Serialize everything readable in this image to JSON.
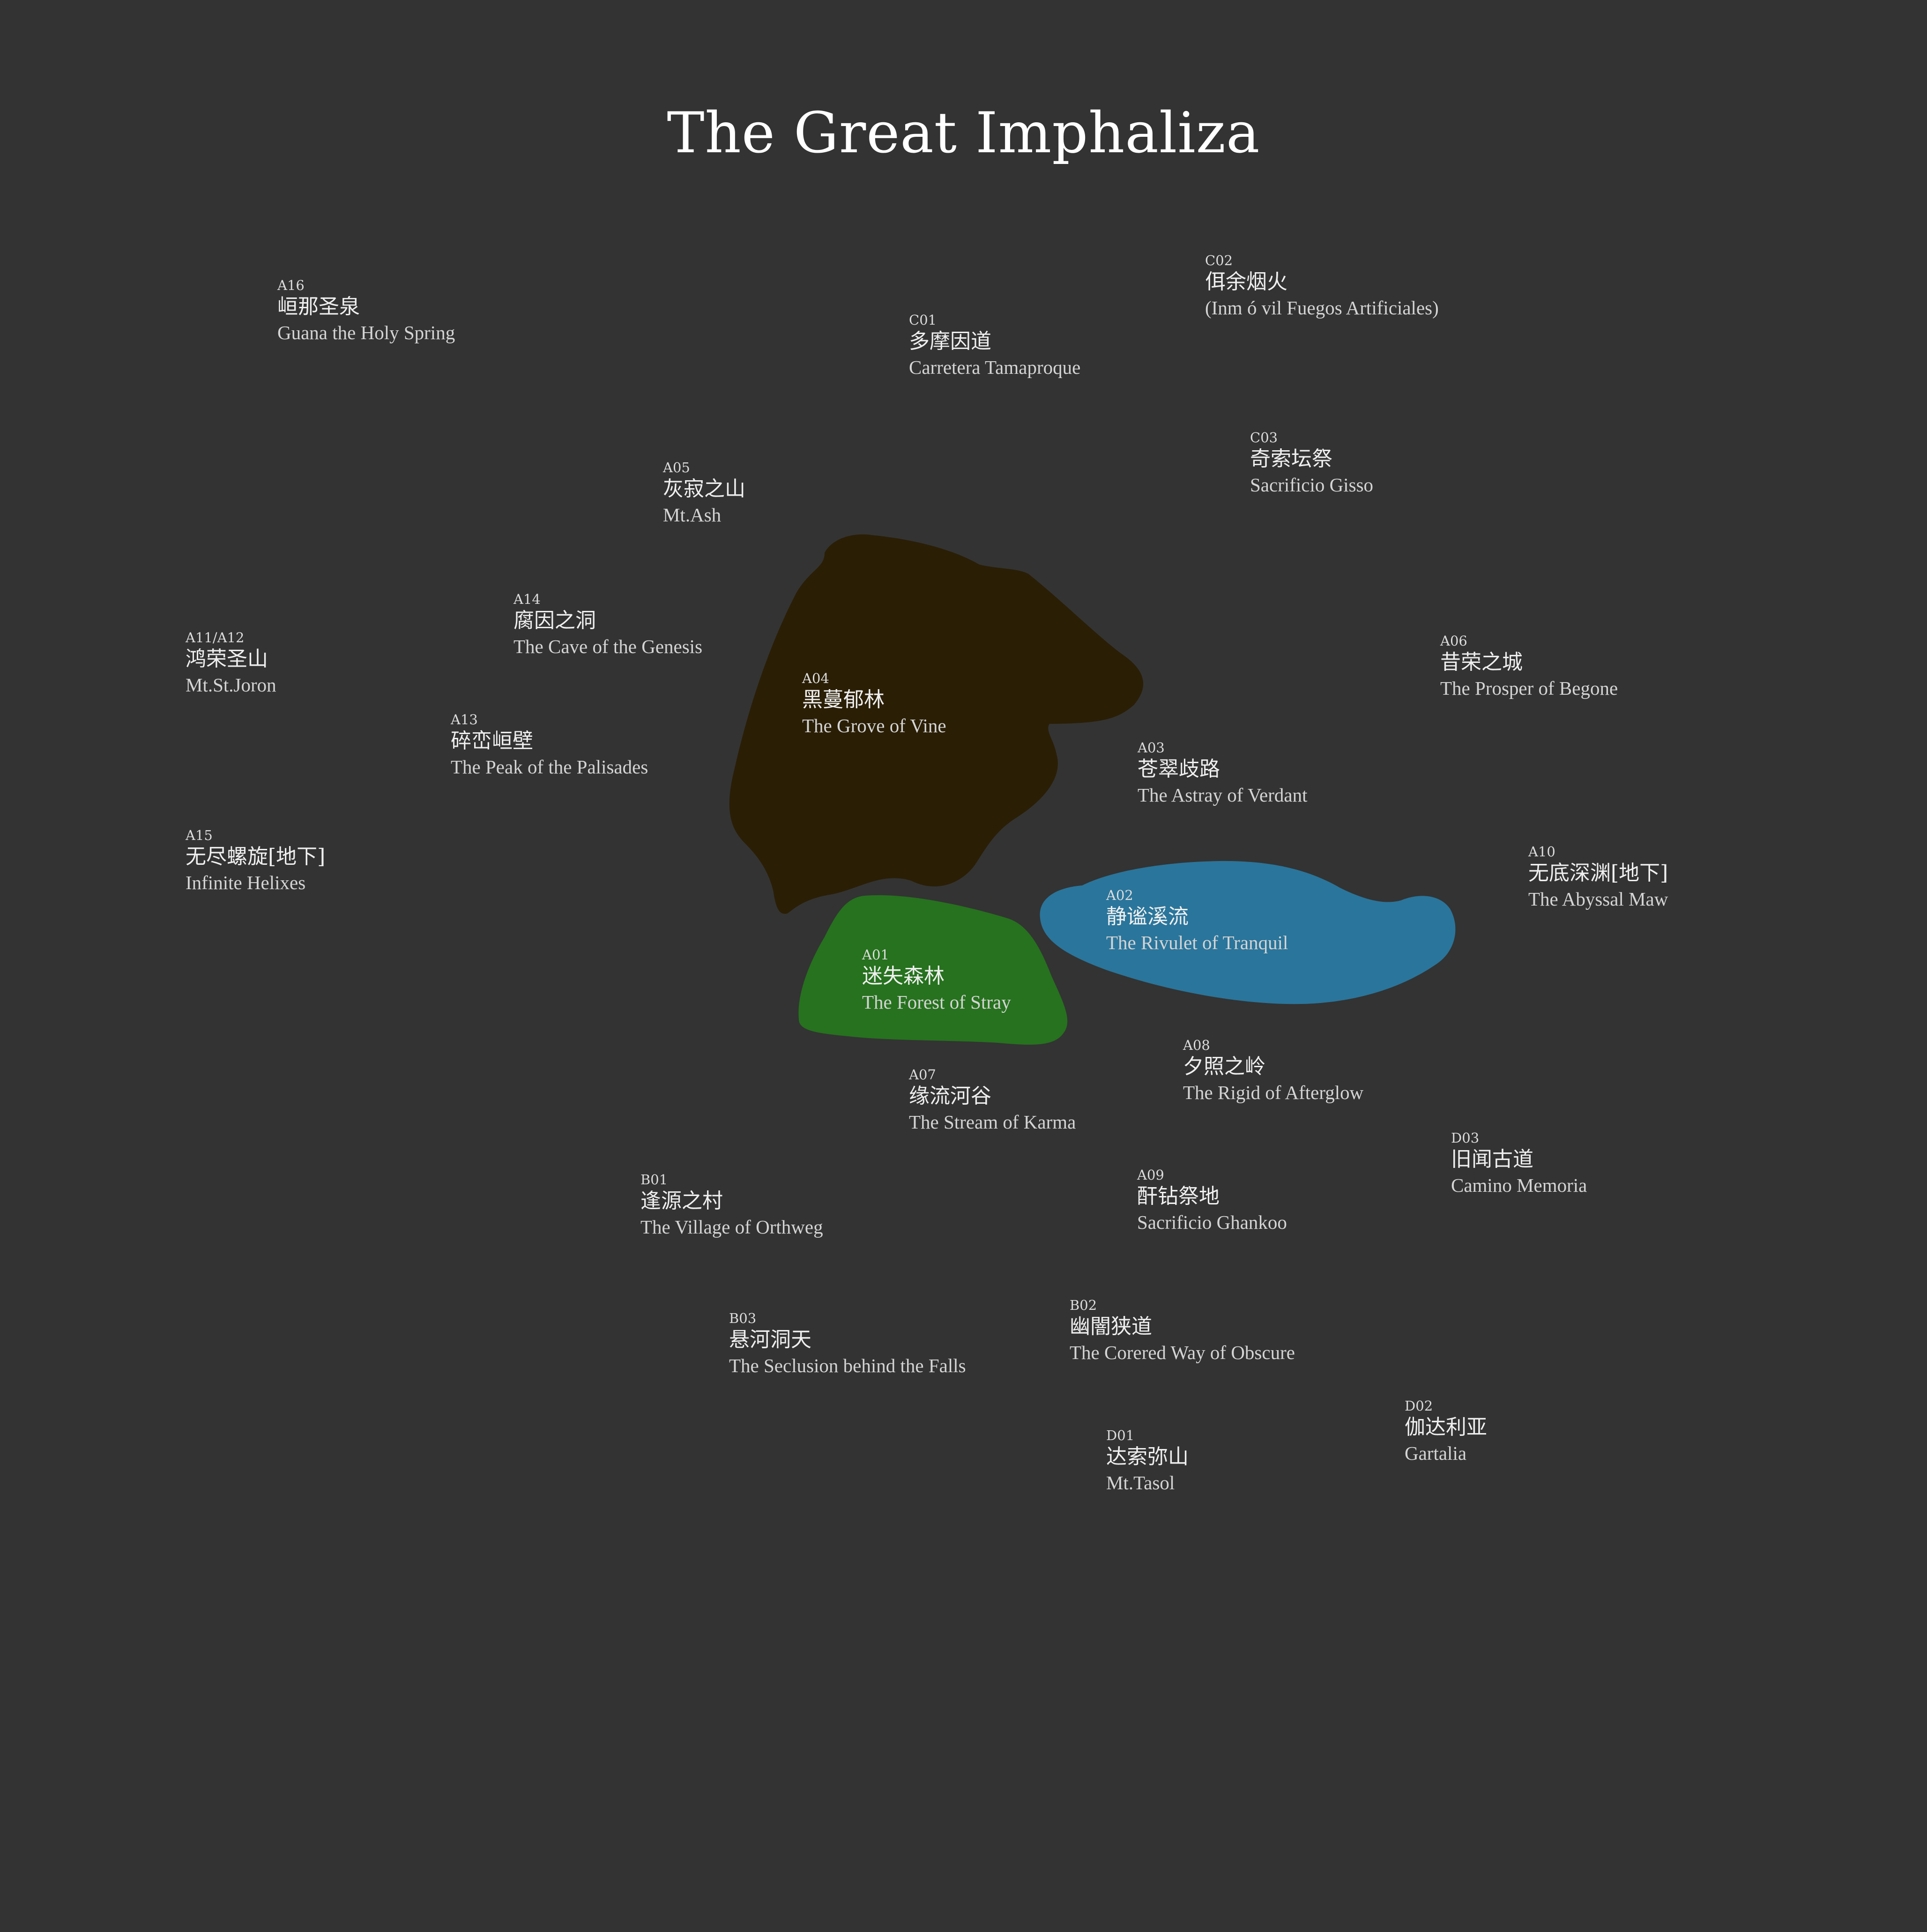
{
  "title": "The Great Imphaliza",
  "colors": {
    "background": "#333333",
    "forest_of_stray": "#26721e",
    "grove_of_vine": "#2a1e05",
    "rivulet_of_tranquil": "#2a759b"
  },
  "regions": [
    {
      "code": "A16",
      "cn": "峘那圣泉",
      "en": "Guana the Holy Spring"
    },
    {
      "code": "C01",
      "cn": "多摩因道",
      "en": "Carretera Tamaproque"
    },
    {
      "code": "C02",
      "cn": "佴余烟火",
      "en": "(Inm ó vil Fuegos Artificiales)"
    },
    {
      "code": "C03",
      "cn": "奇索坛祭",
      "en": "Sacrificio Gisso"
    },
    {
      "code": "A05",
      "cn": "灰寂之山",
      "en": "Mt.Ash"
    },
    {
      "code": "A14",
      "cn": "腐因之洞",
      "en": "The Cave of the Genesis"
    },
    {
      "code": "A11/A12",
      "cn": "鸿荣圣山",
      "en": "Mt.St.Joron"
    },
    {
      "code": "A13",
      "cn": "碎峦峘壁",
      "en": "The Peak of the Palisades"
    },
    {
      "code": "A04",
      "cn": "黑蔓郁林",
      "en": "The Grove of Vine"
    },
    {
      "code": "A06",
      "cn": "昔荣之城",
      "en": "The Prosper of Begone"
    },
    {
      "code": "A03",
      "cn": "苍翠歧路",
      "en": "The Astray of Verdant"
    },
    {
      "code": "A15",
      "cn": "无尽螺旋[地下]",
      "en": "Infinite Helixes"
    },
    {
      "code": "A10",
      "cn": "无底深渊[地下]",
      "en": "The Abyssal Maw"
    },
    {
      "code": "A02",
      "cn": "静谧溪流",
      "en": "The Rivulet of Tranquil"
    },
    {
      "code": "A01",
      "cn": "迷失森林",
      "en": "The Forest of Stray"
    },
    {
      "code": "A08",
      "cn": "夕照之岭",
      "en": "The Rigid of Afterglow"
    },
    {
      "code": "A07",
      "cn": "缘流河谷",
      "en": "The Stream of Karma"
    },
    {
      "code": "D03",
      "cn": "旧闻古道",
      "en": "Camino Memoria"
    },
    {
      "code": "A09",
      "cn": "酐钻祭地",
      "en": "Sacrificio Ghankoo"
    },
    {
      "code": "B01",
      "cn": "逢源之村",
      "en": "The Village of Orthweg"
    },
    {
      "code": "B03",
      "cn": "悬河洞天",
      "en": "The Seclusion behind the Falls"
    },
    {
      "code": "B02",
      "cn": "幽闇狭道",
      "en": "The Corered Way of Obscure"
    },
    {
      "code": "D02",
      "cn": "伽达利亚",
      "en": "Gartalia"
    },
    {
      "code": "D01",
      "cn": "达索弥山",
      "en": "Mt.Tasol"
    }
  ]
}
